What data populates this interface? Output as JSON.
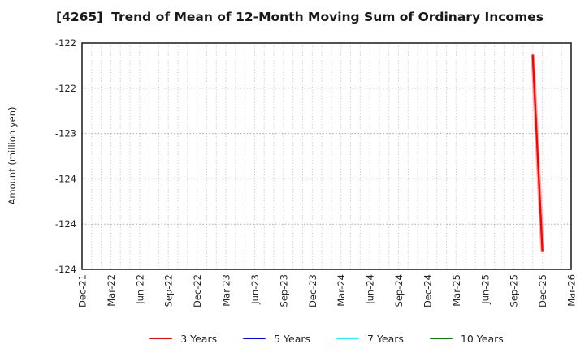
{
  "chart_data": {
    "type": "line",
    "title": "[4265]  Trend of Mean of 12-Month Moving Sum of Ordinary Incomes",
    "xlabel": "",
    "ylabel": "Amount (million yen)",
    "grid": true,
    "legend_position": "bottom",
    "x_range_months": 51,
    "x_tick_step_months": 3,
    "x_tick_labels": [
      "Dec-21",
      "Mar-22",
      "Jun-22",
      "Sep-22",
      "Dec-22",
      "Mar-23",
      "Jun-23",
      "Sep-23",
      "Dec-23",
      "Mar-24",
      "Jun-24",
      "Sep-24",
      "Dec-24",
      "Mar-25",
      "Jun-25",
      "Sep-25",
      "Dec-25",
      "Mar-26"
    ],
    "ylim": [
      -124.5,
      -122.0
    ],
    "y_ticks": [
      {
        "label": "-122",
        "value": -122.0
      },
      {
        "label": "-122",
        "value": -122.5
      },
      {
        "label": "-123",
        "value": -123.0
      },
      {
        "label": "-124",
        "value": -123.5
      },
      {
        "label": "-124",
        "value": -124.0
      },
      {
        "label": "-124",
        "value": -124.5
      }
    ],
    "series": [
      {
        "name": "3 Years",
        "color": "#ff0000",
        "points": [
          {
            "label": "Nov-25",
            "month": 47,
            "value": -122.14
          },
          {
            "label": "Dec-25",
            "month": 48,
            "value": -124.29
          }
        ]
      },
      {
        "name": "5 Years",
        "color": "#0000ff",
        "points": []
      },
      {
        "name": "7 Years",
        "color": "#00ffff",
        "points": []
      },
      {
        "name": "10 Years",
        "color": "#008000",
        "points": []
      }
    ],
    "colors": {
      "grid_vertical": "#bdbdbd",
      "grid_horizontal": "#a8a8a8",
      "axis_border": "#262626",
      "tick_text": "#262626",
      "title_text": "#1a1a1a"
    }
  }
}
